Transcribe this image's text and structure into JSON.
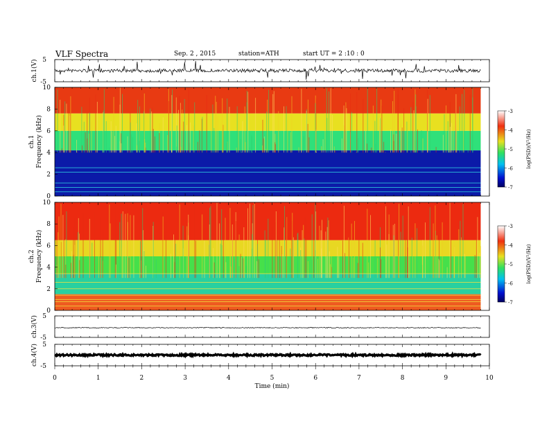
{
  "header": {
    "title": "VLF  Spectra",
    "date": "Sep. 2  , 2015",
    "station": "station=ATH",
    "start": "start  UT  =   2  :10 : 0"
  },
  "chart_data": [
    {
      "type": "line",
      "id": "ch1-waveform",
      "ylabel": "ch.1(V)",
      "ylim": [
        -5,
        5
      ],
      "yticks": [
        "5",
        "-5"
      ],
      "xlim": [
        0,
        10
      ],
      "data_extent_min": 9.8,
      "baseline": 0,
      "color": "#000000"
    },
    {
      "type": "heatmap",
      "id": "ch1-spectrogram",
      "ylabel": "ch.1\nFrequency  (kHz)",
      "ylim": [
        0,
        10
      ],
      "yticks": [
        "0",
        "2",
        "4",
        "6",
        "8",
        "10"
      ],
      "xlim": [
        0,
        10
      ],
      "data_extent_min": 9.8,
      "colorbar": {
        "label": "log(PSD)(V²/Hz)",
        "range": [
          -7,
          -3
        ],
        "ticks": [
          "-3",
          "-4",
          "-5",
          "-6",
          "-7"
        ]
      },
      "bands": [
        {
          "from_khz": 0,
          "to_khz": 4.2,
          "color": "#0b1aa8"
        },
        {
          "from_khz": 4.2,
          "to_khz": 6,
          "color": "#2fe07a"
        },
        {
          "from_khz": 6,
          "to_khz": 7.6,
          "color": "#e8e020"
        },
        {
          "from_khz": 7.6,
          "to_khz": 10,
          "color": "#e83a12"
        }
      ]
    },
    {
      "type": "heatmap",
      "id": "ch2-spectrogram",
      "ylabel": "ch.2\nFrequency  (kHz)",
      "ylim": [
        0,
        10
      ],
      "yticks": [
        "0",
        "2",
        "4",
        "6",
        "8",
        "10"
      ],
      "xlim": [
        0,
        10
      ],
      "data_extent_min": 9.8,
      "colorbar": {
        "label": "log(PSD)(V²/Hz)",
        "range": [
          -7,
          -3
        ],
        "ticks": [
          "-3",
          "-4",
          "-5",
          "-6",
          "-7"
        ]
      },
      "bands": [
        {
          "from_khz": 0,
          "to_khz": 1.5,
          "color": "#ee5a20"
        },
        {
          "from_khz": 1.5,
          "to_khz": 3.4,
          "color": "#28d0a0"
        },
        {
          "from_khz": 3.4,
          "to_khz": 5,
          "color": "#46e04a"
        },
        {
          "from_khz": 5,
          "to_khz": 6.5,
          "color": "#e8d822"
        },
        {
          "from_khz": 6.5,
          "to_khz": 10,
          "color": "#ec2a10"
        }
      ]
    },
    {
      "type": "line",
      "id": "ch3-waveform",
      "ylabel": "ch.3(V)",
      "ylim": [
        -5,
        5
      ],
      "yticks": [
        "5",
        "-5"
      ],
      "xlim": [
        0,
        10
      ],
      "data_extent_min": 9.8,
      "baseline": -0.5,
      "color": "#000000"
    },
    {
      "type": "line",
      "id": "ch4-waveform",
      "ylabel": "ch.4(V)",
      "ylim": [
        -5,
        5
      ],
      "yticks": [
        "5",
        "-5"
      ],
      "xlim": [
        0,
        10
      ],
      "data_extent_min": 9.8,
      "baseline": 0,
      "color": "#000000"
    }
  ],
  "xaxis": {
    "label": "Time  (min)",
    "ticks": [
      "0",
      "1",
      "2",
      "3",
      "4",
      "5",
      "6",
      "7",
      "8",
      "9",
      "10"
    ]
  },
  "colorbar_ticks": [
    "-3",
    "-4",
    "-5",
    "-6",
    "-7"
  ],
  "colorbar_label": "log(PSD)(V²/Hz)"
}
